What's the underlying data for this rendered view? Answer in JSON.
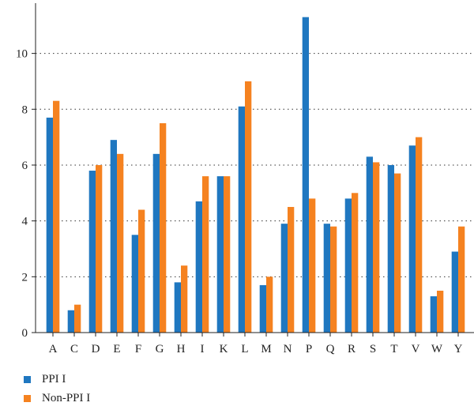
{
  "chart_data": {
    "type": "bar",
    "categories": [
      "A",
      "C",
      "D",
      "E",
      "F",
      "G",
      "H",
      "I",
      "K",
      "L",
      "M",
      "N",
      "P",
      "Q",
      "R",
      "S",
      "T",
      "V",
      "W",
      "Y"
    ],
    "series": [
      {
        "name": "PPI I",
        "color": "#1f77c0",
        "values": [
          7.7,
          0.8,
          5.8,
          6.9,
          3.5,
          6.4,
          1.8,
          4.7,
          5.6,
          8.1,
          1.7,
          3.9,
          11.3,
          3.9,
          4.8,
          6.3,
          6.0,
          6.7,
          1.3,
          2.9
        ]
      },
      {
        "name": "Non-PPI I",
        "color": "#f58220",
        "values": [
          8.3,
          1.0,
          6.0,
          6.4,
          4.4,
          7.5,
          2.4,
          5.6,
          5.6,
          9.0,
          2.0,
          4.5,
          4.8,
          3.8,
          5.0,
          6.1,
          5.7,
          7.0,
          1.5,
          3.8
        ]
      }
    ],
    "yticks": [
      0,
      2,
      4,
      6,
      8,
      10
    ],
    "ylim": [
      0,
      11.8
    ],
    "grid": "dotted horizontal",
    "legend_position": "bottom-left"
  }
}
